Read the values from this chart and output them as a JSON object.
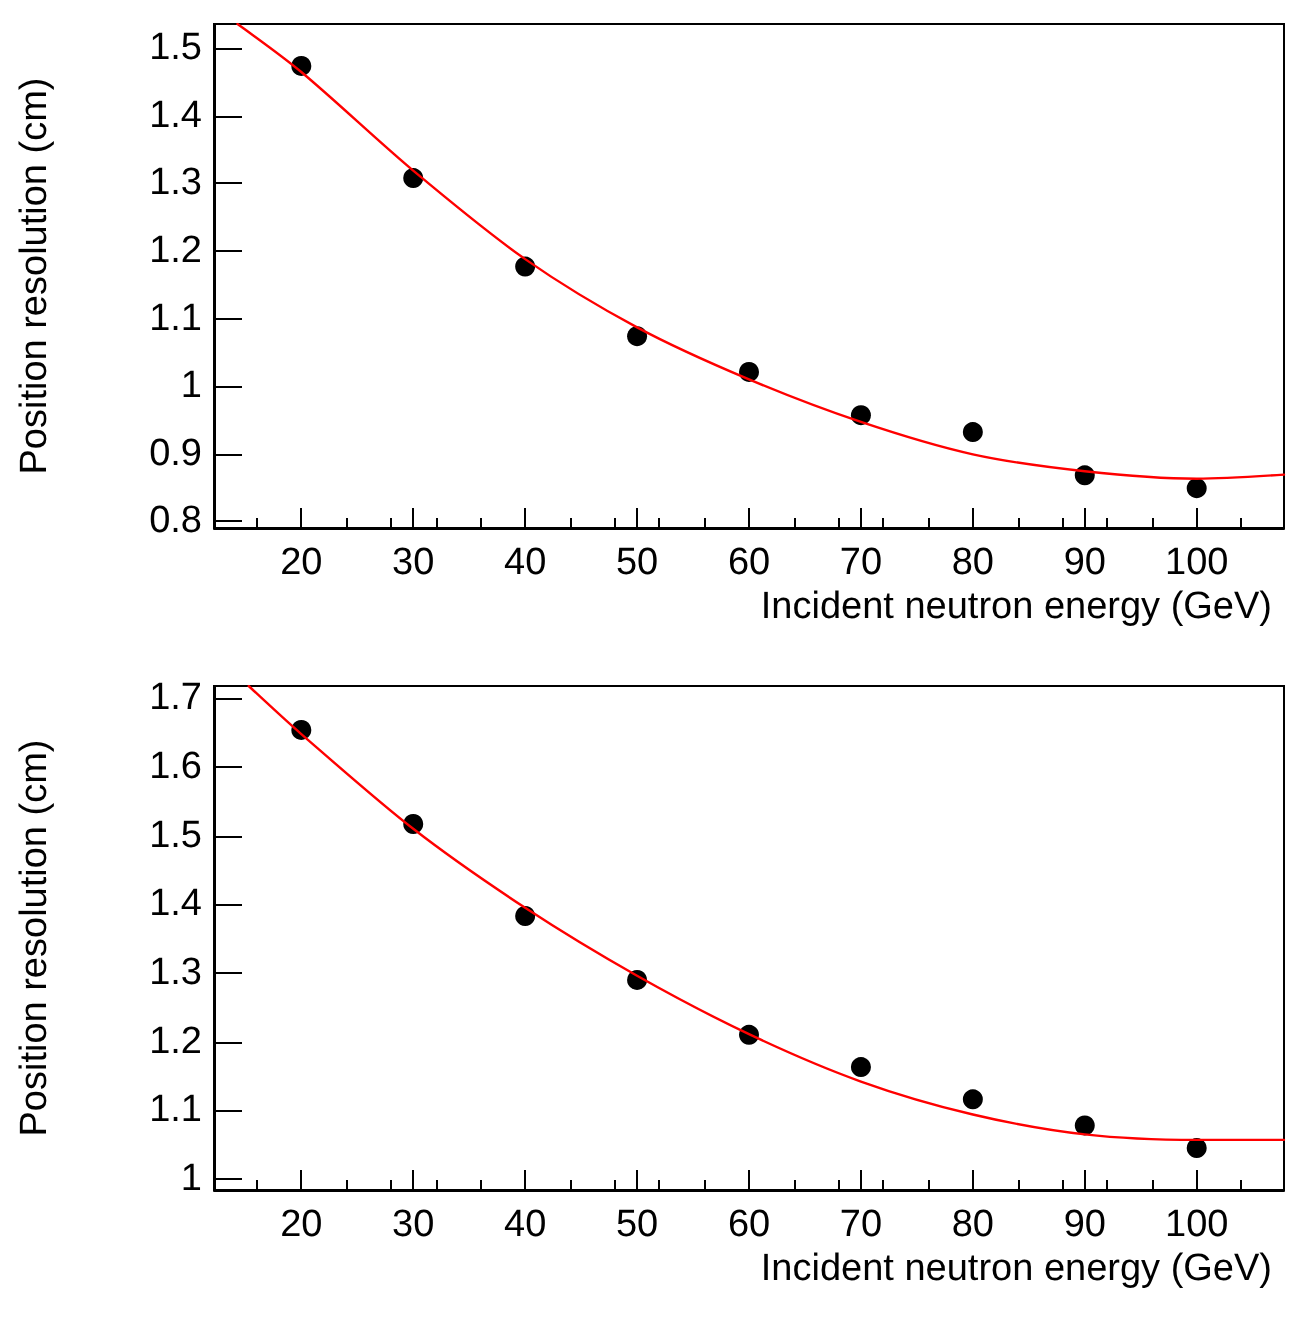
{
  "chart_data": [
    {
      "type": "scatter",
      "xlabel": "Incident neutron energy (GeV)",
      "ylabel": "Position resolution (cm)",
      "xlim": [
        12.2,
        107.8
      ],
      "ylim": [
        0.79,
        1.536
      ],
      "xticks": [
        20,
        30,
        40,
        50,
        60,
        70,
        80,
        90,
        100
      ],
      "yticks": [
        0.8,
        0.9,
        1,
        1.1,
        1.2,
        1.3,
        1.4,
        1.5
      ],
      "grid": false,
      "series": [
        {
          "color": "#000000",
          "marker": "circle",
          "x": [
            20,
            30,
            40,
            50,
            60,
            70,
            80,
            90,
            100
          ],
          "values": [
            1.474,
            1.308,
            1.177,
            1.074,
            1.021,
            0.957,
            0.932,
            0.868,
            0.849
          ]
        },
        {
          "type": "line",
          "color": "#ff0000",
          "marker": "none",
          "x": [
            14.3,
            20,
            30,
            40,
            50,
            60,
            70,
            80,
            90,
            100,
            107.8
          ],
          "values": [
            1.536,
            1.465,
            1.319,
            1.188,
            1.087,
            1.01,
            0.947,
            0.899,
            0.874,
            0.863,
            0.869
          ]
        }
      ]
    },
    {
      "type": "scatter",
      "xlabel": "Incident neutron energy (GeV)",
      "ylabel": "Position resolution (cm)",
      "xlim": [
        12.2,
        107.8
      ],
      "ylim": [
        0.984,
        1.718
      ],
      "xticks": [
        20,
        30,
        40,
        50,
        60,
        70,
        80,
        90,
        100
      ],
      "yticks": [
        1,
        1.1,
        1.2,
        1.3,
        1.4,
        1.5,
        1.6,
        1.7
      ],
      "grid": false,
      "series": [
        {
          "color": "#000000",
          "marker": "circle",
          "x": [
            20,
            30,
            40,
            50,
            60,
            70,
            80,
            90,
            100
          ],
          "values": [
            1.654,
            1.517,
            1.383,
            1.29,
            1.21,
            1.163,
            1.116,
            1.078,
            1.045
          ]
        },
        {
          "type": "line",
          "color": "#ff0000",
          "marker": "none",
          "x": [
            15.3,
            20,
            30,
            40,
            50,
            60,
            70,
            80,
            90,
            100,
            107.8
          ],
          "values": [
            1.718,
            1.648,
            1.51,
            1.395,
            1.296,
            1.211,
            1.142,
            1.094,
            1.065,
            1.057,
            1.057
          ]
        }
      ]
    }
  ]
}
